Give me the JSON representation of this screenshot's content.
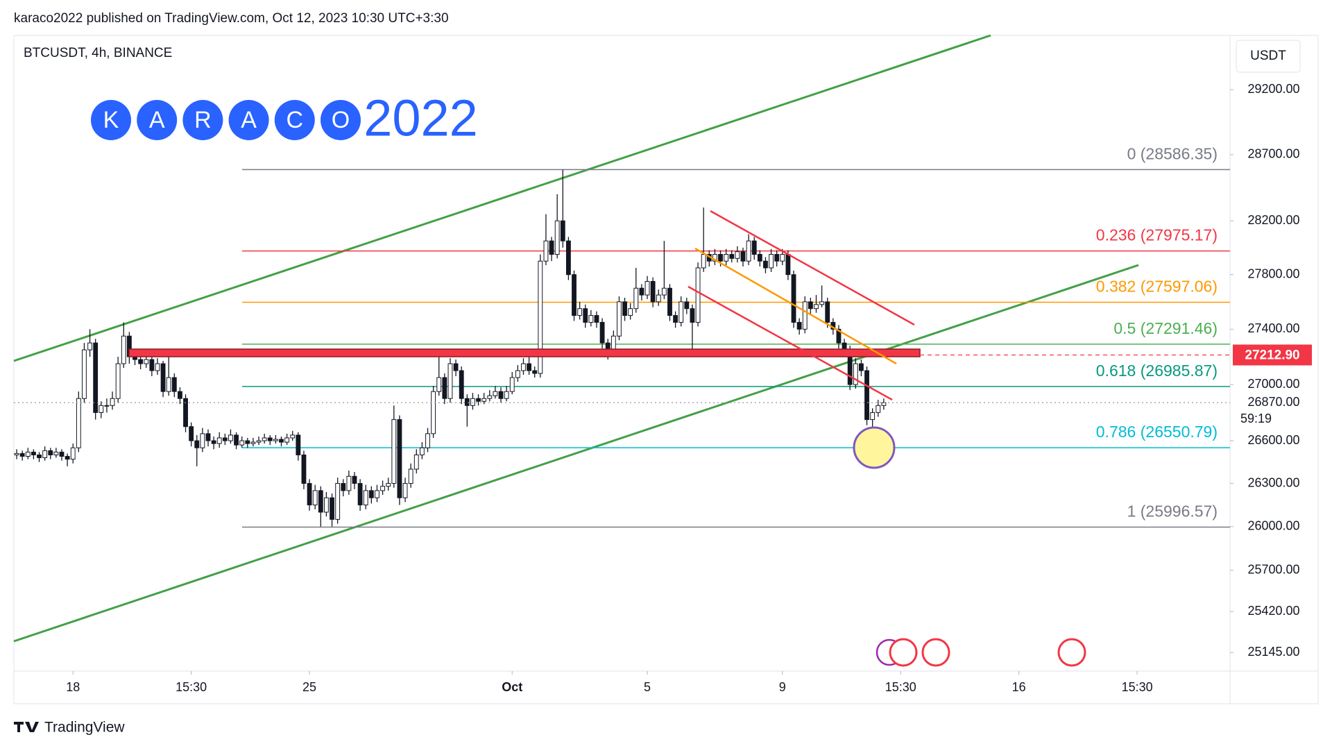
{
  "header": {
    "published": "karaco2022 published on TradingView.com, Oct 12, 2023 10:30 UTC+3:30"
  },
  "logo": {
    "letters": [
      "K",
      "A",
      "R",
      "A",
      "C",
      "O"
    ],
    "suffix": "2022"
  },
  "footer": {
    "brand": "TradingView"
  },
  "chart_data": {
    "type": "candlestick",
    "title": "BTCUSDT, 4h, BINANCE",
    "y_axis_title": "USDT",
    "log_scale": true,
    "up_color": "#ffffff",
    "down_color": "#131722",
    "xlim": [
      -10.5,
      205.5
    ],
    "xticks": [
      {
        "value": 0,
        "label": "18"
      },
      {
        "value": 21,
        "label": "15:30"
      },
      {
        "value": 42,
        "label": "25"
      },
      {
        "value": 78,
        "label": "Oct"
      },
      {
        "value": 102,
        "label": "5"
      },
      {
        "value": 126,
        "label": "9"
      },
      {
        "value": 147,
        "label": "15:30"
      },
      {
        "value": 168,
        "label": "16"
      },
      {
        "value": 189,
        "label": "15:30"
      }
    ],
    "ylim": [
      25021,
      29624
    ],
    "yticks": [
      {
        "value": 29200,
        "label": "29200.00"
      },
      {
        "value": 28700,
        "label": "28700.00"
      },
      {
        "value": 28200,
        "label": "28200.00"
      },
      {
        "value": 27800,
        "label": "27800.00"
      },
      {
        "value": 27400,
        "label": "27400.00"
      },
      {
        "value": 27000,
        "label": "27000.00"
      },
      {
        "value": 26600,
        "label": "26600.00"
      },
      {
        "value": 26300,
        "label": "26300.00"
      },
      {
        "value": 26000,
        "label": "26000.00"
      },
      {
        "value": 25700,
        "label": "25700.00"
      },
      {
        "value": 25420,
        "label": "25420.00"
      },
      {
        "value": 25145,
        "label": "25145.00"
      }
    ],
    "fib": [
      {
        "value": 28586.35,
        "label": "0 (28586.35)",
        "color": "#787b86"
      },
      {
        "value": 27975.17,
        "label": "0.236 (27975.17)",
        "color": "#f23645"
      },
      {
        "value": 27597.06,
        "label": "0.382 (27597.06)",
        "color": "#ff9800"
      },
      {
        "value": 27291.46,
        "label": "0.5 (27291.46)",
        "color": "#4caf50"
      },
      {
        "value": 26985.87,
        "label": "0.618 (26985.87)",
        "color": "#089981"
      },
      {
        "value": 26550.79,
        "label": "0.786 (26550.79)",
        "color": "#00bcd4"
      },
      {
        "value": 25996.57,
        "label": "1 (25996.57)",
        "color": "#787b86"
      }
    ],
    "price_tags": [
      {
        "value": 27212.9,
        "label": "27212.90",
        "color": "#f23645"
      },
      {
        "value": 26870,
        "label": "26870.00",
        "color": "#9598a1"
      }
    ],
    "countdown": "59:19",
    "x": [
      -10,
      -9,
      -8,
      -7,
      -6,
      -5,
      -4,
      -3,
      -2,
      -1,
      0,
      1,
      2,
      3,
      4,
      5,
      6,
      7,
      8,
      9,
      10,
      11,
      12,
      13,
      14,
      15,
      16,
      17,
      18,
      19,
      20,
      21,
      22,
      23,
      24,
      25,
      26,
      27,
      28,
      29,
      30,
      31,
      32,
      33,
      34,
      35,
      36,
      37,
      38,
      39,
      40,
      41,
      42,
      43,
      44,
      45,
      46,
      47,
      48,
      49,
      50,
      51,
      52,
      53,
      54,
      55,
      56,
      57,
      58,
      59,
      60,
      61,
      62,
      63,
      64,
      65,
      66,
      67,
      68,
      69,
      70,
      71,
      72,
      73,
      74,
      75,
      76,
      77,
      78,
      79,
      80,
      81,
      82,
      83,
      84,
      85,
      86,
      87,
      88,
      89,
      90,
      91,
      92,
      93,
      94,
      95,
      96,
      97,
      98,
      99,
      100,
      101,
      102,
      103,
      104,
      105,
      106,
      107,
      108,
      109,
      110,
      111,
      112,
      113,
      114,
      115,
      116,
      117,
      118,
      119,
      120,
      121,
      122,
      123,
      124,
      125,
      126,
      127,
      128,
      129,
      130,
      131,
      132,
      133,
      134,
      135,
      136,
      137,
      138,
      139,
      140,
      141,
      142,
      143,
      144
    ],
    "ohlc": [
      [
        26500,
        26540,
        26470,
        26510
      ],
      [
        26510,
        26530,
        26460,
        26490
      ],
      [
        26490,
        26550,
        26470,
        26520
      ],
      [
        26520,
        26540,
        26470,
        26500
      ],
      [
        26500,
        26520,
        26450,
        26480
      ],
      [
        26480,
        26560,
        26460,
        26530
      ],
      [
        26530,
        26550,
        26470,
        26500
      ],
      [
        26500,
        26550,
        26480,
        26520
      ],
      [
        26520,
        26540,
        26460,
        26490
      ],
      [
        26490,
        26510,
        26420,
        26470
      ],
      [
        26470,
        26580,
        26440,
        26550
      ],
      [
        26550,
        26950,
        26520,
        26900
      ],
      [
        26900,
        27300,
        26870,
        27250
      ],
      [
        27250,
        27400,
        27200,
        27300
      ],
      [
        27300,
        27330,
        26750,
        26800
      ],
      [
        26800,
        26880,
        26760,
        26850
      ],
      [
        26850,
        26900,
        26800,
        26850
      ],
      [
        26850,
        26950,
        26820,
        26900
      ],
      [
        26900,
        27200,
        26870,
        27150
      ],
      [
        27150,
        27450,
        27120,
        27350
      ],
      [
        27350,
        27380,
        27150,
        27200
      ],
      [
        27200,
        27230,
        27140,
        27180
      ],
      [
        27180,
        27210,
        27110,
        27150
      ],
      [
        27150,
        27220,
        27120,
        27180
      ],
      [
        27180,
        27210,
        27060,
        27100
      ],
      [
        27100,
        27190,
        27070,
        27150
      ],
      [
        27150,
        27170,
        26910,
        26950
      ],
      [
        26950,
        27250,
        26920,
        27050
      ],
      [
        27050,
        27080,
        26910,
        26950
      ],
      [
        26950,
        26980,
        26860,
        26900
      ],
      [
        26900,
        26930,
        26660,
        26700
      ],
      [
        26700,
        26730,
        26560,
        26600
      ],
      [
        26600,
        26640,
        26420,
        26550
      ],
      [
        26550,
        26690,
        26520,
        26650
      ],
      [
        26650,
        26680,
        26560,
        26600
      ],
      [
        26600,
        26630,
        26540,
        26580
      ],
      [
        26580,
        26660,
        26550,
        26620
      ],
      [
        26620,
        26650,
        26570,
        26600
      ],
      [
        26600,
        26680,
        26580,
        26640
      ],
      [
        26640,
        26660,
        26540,
        26570
      ],
      [
        26570,
        26630,
        26550,
        26600
      ],
      [
        26600,
        26620,
        26550,
        26580
      ],
      [
        26580,
        26620,
        26560,
        26590
      ],
      [
        26590,
        26630,
        26570,
        26600
      ],
      [
        26600,
        26650,
        26580,
        26620
      ],
      [
        26620,
        26640,
        26570,
        26600
      ],
      [
        26600,
        26640,
        26580,
        26610
      ],
      [
        26610,
        26630,
        26560,
        26590
      ],
      [
        26590,
        26650,
        26570,
        26620
      ],
      [
        26620,
        26670,
        26600,
        26640
      ],
      [
        26640,
        26660,
        26460,
        26500
      ],
      [
        26500,
        26530,
        26260,
        26300
      ],
      [
        26300,
        26330,
        26110,
        26150
      ],
      [
        26150,
        26290,
        26120,
        26250
      ],
      [
        26250,
        26280,
        26000,
        26100
      ],
      [
        26100,
        26240,
        26070,
        26200
      ],
      [
        26200,
        26230,
        26000,
        26050
      ],
      [
        26050,
        26340,
        26020,
        26300
      ],
      [
        26300,
        26330,
        26210,
        26250
      ],
      [
        26250,
        26390,
        26220,
        26350
      ],
      [
        26350,
        26380,
        26260,
        26300
      ],
      [
        26300,
        26330,
        26110,
        26150
      ],
      [
        26150,
        26290,
        26120,
        26250
      ],
      [
        26250,
        26280,
        26160,
        26200
      ],
      [
        26200,
        26290,
        26170,
        26250
      ],
      [
        26250,
        26320,
        26220,
        26280
      ],
      [
        26280,
        26340,
        26250,
        26300
      ],
      [
        26300,
        26850,
        26270,
        26750
      ],
      [
        26750,
        26780,
        26150,
        26200
      ],
      [
        26200,
        26340,
        26170,
        26300
      ],
      [
        26300,
        26440,
        26270,
        26400
      ],
      [
        26400,
        26540,
        26370,
        26500
      ],
      [
        26500,
        26590,
        26470,
        26550
      ],
      [
        26550,
        26690,
        26520,
        26650
      ],
      [
        26650,
        26990,
        26620,
        26950
      ],
      [
        26950,
        27250,
        26920,
        27050
      ],
      [
        27050,
        27080,
        26860,
        26900
      ],
      [
        26900,
        27190,
        26870,
        27150
      ],
      [
        27150,
        27180,
        27060,
        27100
      ],
      [
        27100,
        27130,
        26860,
        26900
      ],
      [
        26900,
        26930,
        26700,
        26850
      ],
      [
        26850,
        26940,
        26820,
        26900
      ],
      [
        26900,
        26930,
        26850,
        26880
      ],
      [
        26880,
        26940,
        26860,
        26900
      ],
      [
        26900,
        26960,
        26880,
        26920
      ],
      [
        26920,
        26990,
        26900,
        26950
      ],
      [
        26950,
        26980,
        26870,
        26900
      ],
      [
        26900,
        26990,
        26880,
        26950
      ],
      [
        26950,
        27090,
        26930,
        27050
      ],
      [
        27050,
        27140,
        27020,
        27100
      ],
      [
        27100,
        27190,
        27070,
        27150
      ],
      [
        27150,
        27250,
        27070,
        27100
      ],
      [
        27100,
        27130,
        27050,
        27080
      ],
      [
        27080,
        27950,
        27050,
        27900
      ],
      [
        27900,
        28250,
        27870,
        28050
      ],
      [
        28050,
        28080,
        27900,
        27950
      ],
      [
        27950,
        28400,
        27920,
        28200
      ],
      [
        28200,
        28586,
        28000,
        28050
      ],
      [
        28050,
        28080,
        27760,
        27800
      ],
      [
        27800,
        27830,
        27460,
        27500
      ],
      [
        27500,
        27600,
        27470,
        27550
      ],
      [
        27550,
        27580,
        27410,
        27450
      ],
      [
        27450,
        27540,
        27420,
        27500
      ],
      [
        27500,
        27530,
        27410,
        27450
      ],
      [
        27450,
        27480,
        27260,
        27300
      ],
      [
        27300,
        27330,
        27180,
        27250
      ],
      [
        27250,
        27390,
        27220,
        27350
      ],
      [
        27350,
        27640,
        27320,
        27600
      ],
      [
        27600,
        27630,
        27460,
        27500
      ],
      [
        27500,
        27590,
        27470,
        27550
      ],
      [
        27550,
        27850,
        27520,
        27700
      ],
      [
        27700,
        27730,
        27610,
        27650
      ],
      [
        27650,
        27790,
        27620,
        27750
      ],
      [
        27750,
        27780,
        27560,
        27600
      ],
      [
        27600,
        27690,
        27570,
        27650
      ],
      [
        27650,
        28050,
        27620,
        27700
      ],
      [
        27700,
        27730,
        27460,
        27500
      ],
      [
        27500,
        27530,
        27410,
        27450
      ],
      [
        27450,
        27640,
        27420,
        27600
      ],
      [
        27600,
        27630,
        27510,
        27550
      ],
      [
        27550,
        27580,
        27200,
        27450
      ],
      [
        27450,
        27890,
        27420,
        27850
      ],
      [
        27850,
        28300,
        27820,
        27950
      ],
      [
        27950,
        27980,
        27860,
        27900
      ],
      [
        27900,
        27990,
        27870,
        27950
      ],
      [
        27950,
        27980,
        27860,
        27900
      ],
      [
        27900,
        27990,
        27870,
        27950
      ],
      [
        27950,
        27980,
        27890,
        27920
      ],
      [
        27920,
        28010,
        27890,
        27970
      ],
      [
        27970,
        28000,
        27860,
        27900
      ],
      [
        27900,
        28100,
        27870,
        28050
      ],
      [
        28050,
        28080,
        27910,
        27950
      ],
      [
        27950,
        27980,
        27860,
        27900
      ],
      [
        27900,
        27930,
        27810,
        27850
      ],
      [
        27850,
        27990,
        27820,
        27950
      ],
      [
        27950,
        27980,
        27860,
        27900
      ],
      [
        27900,
        27990,
        27870,
        27950
      ],
      [
        27950,
        27980,
        27760,
        27800
      ],
      [
        27800,
        27830,
        27410,
        27450
      ],
      [
        27450,
        27480,
        27360,
        27400
      ],
      [
        27400,
        27640,
        27370,
        27600
      ],
      [
        27600,
        27630,
        27510,
        27550
      ],
      [
        27550,
        27650,
        27520,
        27580
      ],
      [
        27580,
        27720,
        27560,
        27600
      ],
      [
        27600,
        27630,
        27410,
        27450
      ],
      [
        27450,
        27480,
        27360,
        27400
      ],
      [
        27400,
        27430,
        27260,
        27300
      ],
      [
        27300,
        27330,
        27210,
        27250
      ],
      [
        27250,
        27280,
        26960,
        27000
      ],
      [
        27000,
        27190,
        26970,
        27150
      ],
      [
        27150,
        27180,
        27060,
        27100
      ],
      [
        27100,
        27130,
        26710,
        26750
      ],
      [
        26750,
        26830,
        26560,
        26800
      ],
      [
        26800,
        26890,
        26770,
        26850
      ],
      [
        26850,
        26900,
        26820,
        26870
      ]
    ]
  }
}
